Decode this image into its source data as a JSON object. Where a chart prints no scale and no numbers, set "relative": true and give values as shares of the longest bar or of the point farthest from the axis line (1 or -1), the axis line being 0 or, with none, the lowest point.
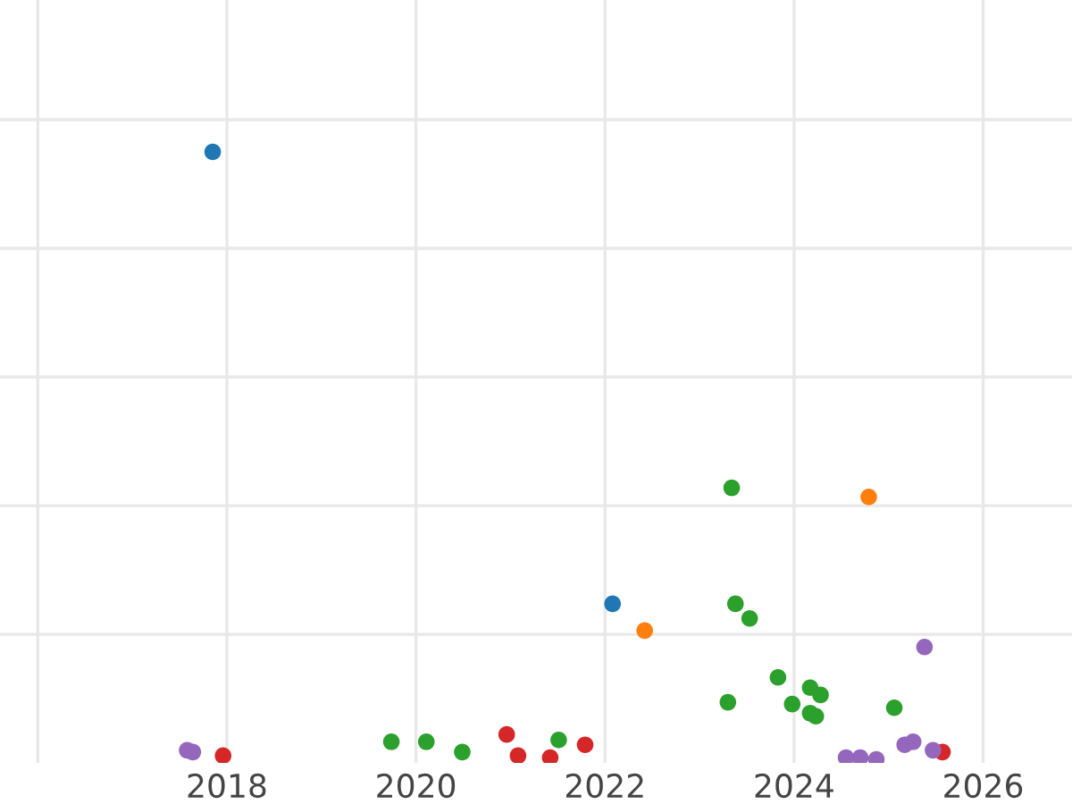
{
  "chart_data": {
    "type": "scatter",
    "relative": true,
    "grid": true,
    "marker": "circle",
    "xlim": [
      2015.6,
      2026.94
    ],
    "xticks": [
      {
        "value": 2016,
        "label": null
      },
      2018,
      2020,
      2022,
      2024,
      2026
    ],
    "tick_labels": "x",
    "series": [
      {
        "color": "#1f77b4",
        "x": [
          2017.85,
          2022.08
        ],
        "values": [
          1.0,
          0.256
        ]
      },
      {
        "color": "#ff7f0e",
        "x": [
          2022.42,
          2024.79
        ],
        "values": [
          0.212,
          0.432
        ]
      },
      {
        "color": "#2ca02c",
        "x": [
          2019.74,
          2020.11,
          2020.49,
          2021.51,
          2023.34,
          2023.38,
          2023.53,
          2023.3,
          2023.83,
          2023.98,
          2024.17,
          2024.28,
          2024.17,
          2024.23,
          2025.06
        ],
        "values": [
          0.029,
          0.029,
          0.012,
          0.032,
          0.447,
          0.256,
          0.232,
          0.094,
          0.135,
          0.091,
          0.118,
          0.106,
          0.076,
          0.071,
          0.085
        ]
      },
      {
        "color": "#d62728",
        "x": [
          2017.96,
          2020.96,
          2021.08,
          2021.42,
          2021.79,
          2025.57
        ],
        "values": [
          0.006,
          0.041,
          0.006,
          0.003,
          0.024,
          0.012
        ]
      },
      {
        "color": "#9467bd",
        "x": [
          2017.58,
          2017.64,
          2024.55,
          2024.7,
          2024.87,
          2025.38,
          2025.17,
          2025.26,
          2025.47
        ],
        "values": [
          0.015,
          0.012,
          0.003,
          0.003,
          0.0,
          0.185,
          0.024,
          0.029,
          0.015
        ]
      }
    ]
  }
}
